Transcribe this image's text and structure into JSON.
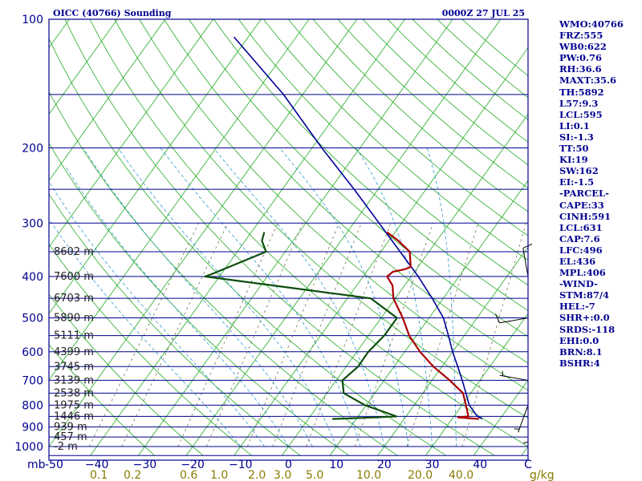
{
  "header": {
    "title": "OICC (40766) Sounding",
    "time": "0000Z 27 JUL 25"
  },
  "params": [
    "WMO:40766",
    "FRZ:555",
    "WB0:622",
    "PW:0.76",
    "RH:36.6",
    "MAXT:35.6",
    "TH:5892",
    "L57:9.3",
    "LCL:595",
    "LI:0.1",
    "SI:-1.3",
    "TT:50",
    "KI:19",
    "SW:162",
    "EI:-1.5",
    "-PARCEL-",
    "CAPE:33",
    "CINH:591",
    "LCL:631",
    "CAP:7.6",
    "LFC:496",
    "EL:436",
    "MPL:406",
    "-WIND-",
    "STM:87/4",
    "HEL:-7",
    "SHR+:0.0",
    "SRDS:-118",
    "EHI:0.0",
    "BRN:8.1",
    "BSHR:4"
  ],
  "colors": {
    "frame": "#000090",
    "isobar": "#000090",
    "isotherm": "#22aa22",
    "dry_adiabat": "#22aa22",
    "moist_adiabat": "#3399cc",
    "mixing_ratio": "#777755",
    "parcel": "#000099",
    "temperature": "#aa0000",
    "dewpoint": "#0d4d0d",
    "wind_barb": "#000000",
    "mixing_label": "#8a7a00"
  },
  "chart_data": {
    "type": "line",
    "y_scale": "log-pressure",
    "pressure_axis": {
      "unit": "mb",
      "range": [
        1050,
        100
      ],
      "ticks": [
        100,
        200,
        300,
        400,
        500,
        600,
        700,
        800,
        900,
        1000
      ],
      "tick_labels": [
        "100",
        "200",
        "300",
        "400",
        "500",
        "600",
        "700",
        "800",
        "900",
        "1000"
      ],
      "unit_label": "mb"
    },
    "temperature_axis": {
      "range": [
        -50,
        50
      ],
      "ticks": [
        -50,
        -40,
        -30,
        -20,
        -10,
        0,
        10,
        20,
        30,
        40,
        50
      ],
      "tick_labels": [
        "-50",
        "−40",
        "−30",
        "−20",
        "−10",
        "0",
        "10",
        "20",
        "30",
        "40",
        "C"
      ]
    },
    "mixing_ratio_labels": [
      "0.1",
      "0.2",
      "0.6",
      "1.0",
      "2.0",
      "3.0",
      "5.0",
      "10.0",
      "20.0",
      "40.0",
      "g/kg"
    ],
    "height_labels": [
      {
        "p": 350,
        "label": "8602 m"
      },
      {
        "p": 400,
        "label": "7600 m"
      },
      {
        "p": 450,
        "label": "6703 m"
      },
      {
        "p": 500,
        "label": "5890 m"
      },
      {
        "p": 550,
        "label": "5111 m"
      },
      {
        "p": 600,
        "label": "4399 m"
      },
      {
        "p": 650,
        "label": "3745 m"
      },
      {
        "p": 700,
        "label": "3139 m"
      },
      {
        "p": 750,
        "label": "2538 m"
      },
      {
        "p": 800,
        "label": "1975 m"
      },
      {
        "p": 850,
        "label": "1446 m"
      },
      {
        "p": 900,
        "label": "939 m"
      },
      {
        "p": 950,
        "label": "457 m"
      },
      {
        "p": 1000,
        "label": "-2 m"
      }
    ],
    "series": [
      {
        "name": "Parcel",
        "points": [
          [
            862,
            36.3
          ],
          [
            850,
            34.9
          ],
          [
            800,
            31.5
          ],
          [
            750,
            29.0
          ],
          [
            700,
            26.3
          ],
          [
            650,
            23.3
          ],
          [
            600,
            20.0
          ],
          [
            550,
            16.7
          ],
          [
            500,
            13.0
          ],
          [
            450,
            7.7
          ],
          [
            400,
            1.5
          ],
          [
            350,
            -6.0
          ],
          [
            300,
            -14.7
          ],
          [
            250,
            -25.0
          ],
          [
            200,
            -38.0
          ],
          [
            150,
            -54.0
          ],
          [
            110,
            -73.0
          ]
        ]
      },
      {
        "name": "Temperature",
        "points": [
          [
            862,
            35.6
          ],
          [
            855,
            31.0
          ],
          [
            850,
            33.0
          ],
          [
            800,
            30.8
          ],
          [
            750,
            28.4
          ],
          [
            700,
            23.7
          ],
          [
            650,
            18.2
          ],
          [
            600,
            13.2
          ],
          [
            550,
            8.5
          ],
          [
            500,
            4.5
          ],
          [
            450,
            -0.4
          ],
          [
            420,
            -2.5
          ],
          [
            400,
            -5.0
          ],
          [
            390,
            -4.5
          ],
          [
            385,
            -2.5
          ],
          [
            380,
            -1.5
          ],
          [
            350,
            -4.0
          ],
          [
            330,
            -8.0
          ],
          [
            315,
            -11.7
          ]
        ]
      },
      {
        "name": "Dewpoint",
        "points": [
          [
            862,
            5.0
          ],
          [
            855,
            13.7
          ],
          [
            850,
            18.0
          ],
          [
            800,
            9.7
          ],
          [
            750,
            3.5
          ],
          [
            700,
            1.3
          ],
          [
            650,
            2.5
          ],
          [
            600,
            2.4
          ],
          [
            550,
            3.3
          ],
          [
            500,
            3.3
          ],
          [
            450,
            -5.1
          ],
          [
            400,
            -43.0
          ],
          [
            395,
            -42.0
          ],
          [
            350,
            -34.0
          ],
          [
            330,
            -36.5
          ],
          [
            315,
            -37.3
          ]
        ]
      }
    ],
    "wind_barbs": [
      {
        "p": 400,
        "dir": 350,
        "speed_kt": 10
      },
      {
        "p": 500,
        "dir": 260,
        "speed_kt": 10
      },
      {
        "p": 700,
        "dir": 280,
        "speed_kt": 5
      },
      {
        "p": 800,
        "dir": 200,
        "speed_kt": 5
      },
      {
        "p": 850,
        "dir": 180,
        "speed_kt": 5
      }
    ]
  }
}
